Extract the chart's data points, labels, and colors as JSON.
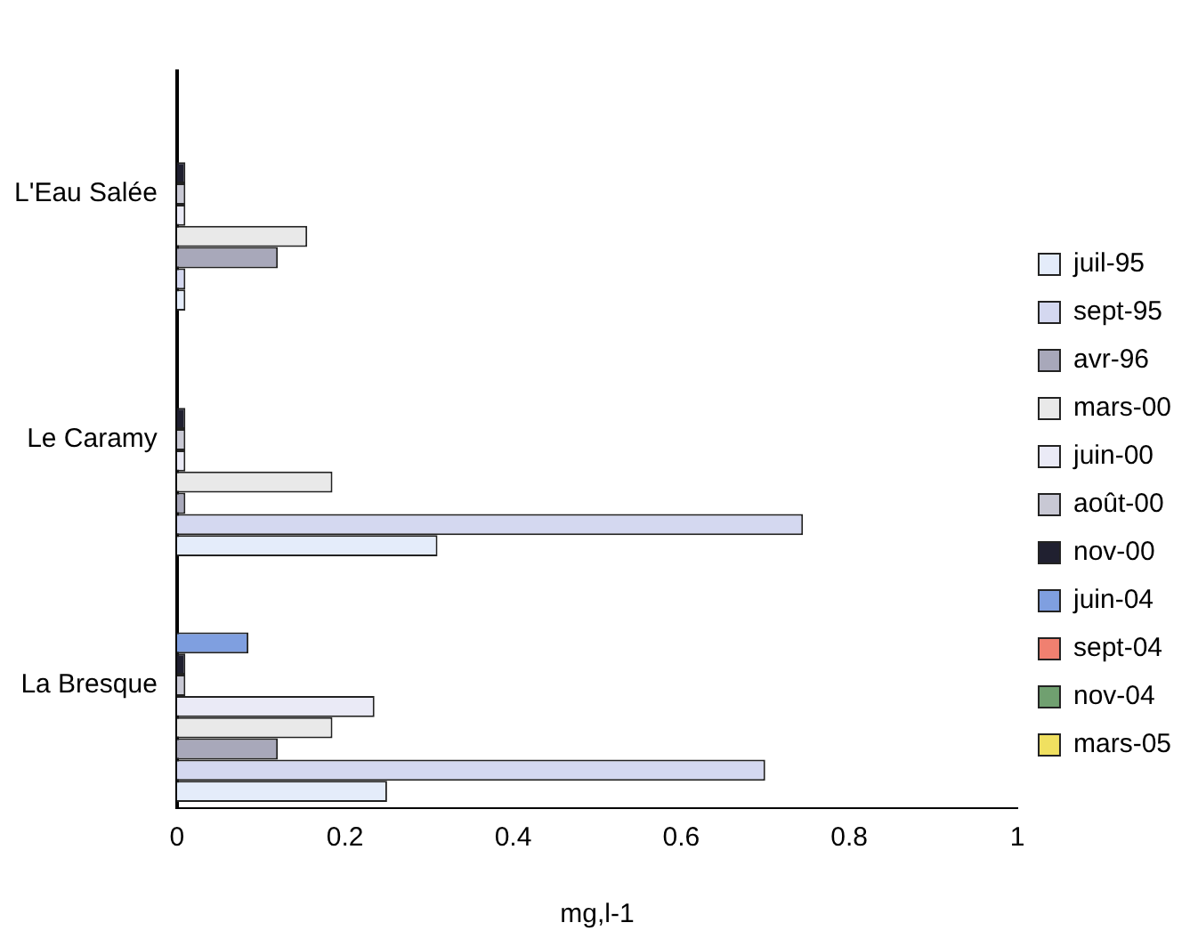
{
  "chart_data": {
    "type": "bar",
    "orientation": "horizontal",
    "xlabel": "mg,l-1",
    "categories": [
      "L'Eau Salée",
      "Le Caramy",
      "La Bresque"
    ],
    "xlim": [
      0,
      1
    ],
    "xticks": [
      0,
      0.2,
      0.4,
      0.6,
      0.8,
      1
    ],
    "grid": false,
    "legend": "right",
    "series": [
      {
        "name": "mars-05",
        "color": "#f0e060",
        "values": [
          null,
          null,
          null
        ]
      },
      {
        "name": "nov-04",
        "color": "#70a070",
        "values": [
          null,
          null,
          null
        ]
      },
      {
        "name": "sept-04",
        "color": "#f08070",
        "values": [
          null,
          null,
          null
        ]
      },
      {
        "name": "juin-04",
        "color": "#7f9fe0",
        "values": [
          null,
          null,
          0.085
        ]
      },
      {
        "name": "nov-00",
        "color": "#202030",
        "values": [
          0.01,
          0.01,
          0.01
        ]
      },
      {
        "name": "août-00",
        "color": "#c8c8d4",
        "values": [
          0.01,
          0.01,
          0.01
        ]
      },
      {
        "name": "juin-00",
        "color": "#eaeaf6",
        "values": [
          0.01,
          0.01,
          0.235
        ]
      },
      {
        "name": "mars-00",
        "color": "#e9e9e9",
        "values": [
          0.155,
          0.185,
          0.185
        ]
      },
      {
        "name": "avr-96",
        "color": "#a8a8ba",
        "values": [
          0.12,
          0.01,
          0.12
        ]
      },
      {
        "name": "sept-95",
        "color": "#d4d8f0",
        "values": [
          0.01,
          0.745,
          0.7
        ]
      },
      {
        "name": "juil-95",
        "color": "#e4ecfa",
        "values": [
          0.01,
          0.31,
          0.25
        ]
      }
    ]
  }
}
